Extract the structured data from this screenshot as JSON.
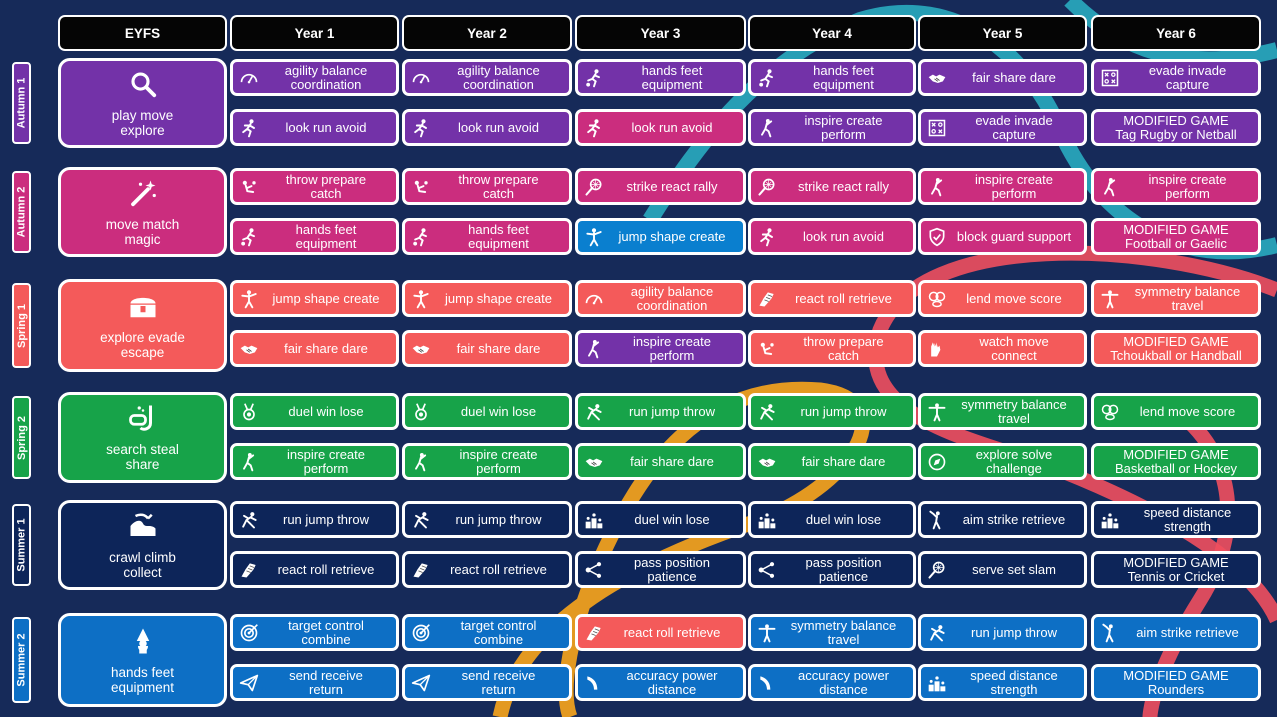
{
  "headers": [
    "EYFS",
    "Year 1",
    "Year 2",
    "Year 3",
    "Year 4",
    "Year 5",
    "Year 6"
  ],
  "colors": {
    "background": "#162a59",
    "autumn1": "#7332a8",
    "autumn2": "#cb2d7e",
    "spring1": "#f45a5a",
    "spring2": "#17a349",
    "summer1": "#0d2559",
    "summer2": "#0d6fc5",
    "year3_autumn2_highlight": "#0a7fcf",
    "swirl_teal": "#2ab3c6",
    "swirl_red": "#ef4f5e",
    "swirl_orange": "#f9a51b"
  },
  "terms": [
    {
      "name": "Autumn 1",
      "color": "#7332a8",
      "eyfs": {
        "label": "play move\nexplore",
        "icon": "magnifier-icon"
      },
      "rows": [
        [
          {
            "label": "agility balance\ncoordination",
            "icon": "speedometer-icon"
          },
          {
            "label": "agility balance\ncoordination",
            "icon": "speedometer-icon"
          },
          {
            "label": "hands feet\nequipment",
            "icon": "runner-ball-icon"
          },
          {
            "label": "hands feet\nequipment",
            "icon": "runner-ball-icon"
          },
          {
            "label": "fair share dare",
            "icon": "handshake-icon"
          },
          {
            "label": "evade invade\ncapture",
            "icon": "tactics-board-icon"
          }
        ],
        [
          {
            "label": "look run avoid",
            "icon": "runner-icon"
          },
          {
            "label": "look run avoid",
            "icon": "runner-icon"
          },
          {
            "label": "look run avoid",
            "icon": "runner-icon",
            "color": "#cb2d7e"
          },
          {
            "label": "inspire create\nperform",
            "icon": "dancer-icon"
          },
          {
            "label": "evade invade\ncapture",
            "icon": "tactics-board-icon"
          },
          {
            "label": "MODIFIED GAME\nTag Rugby or Netball",
            "modified": true
          }
        ]
      ]
    },
    {
      "name": "Autumn 2",
      "color": "#cb2d7e",
      "eyfs": {
        "label": "move match\nmagic",
        "icon": "magic-wand-icon"
      },
      "rows": [
        [
          {
            "label": "throw prepare\ncatch",
            "icon": "thrower-icon"
          },
          {
            "label": "throw prepare\ncatch",
            "icon": "thrower-icon"
          },
          {
            "label": "strike react rally",
            "icon": "racket-icon"
          },
          {
            "label": "strike react rally",
            "icon": "racket-icon"
          },
          {
            "label": "inspire create\nperform",
            "icon": "dancer-icon"
          },
          {
            "label": "inspire create\nperform",
            "icon": "dancer-icon"
          }
        ],
        [
          {
            "label": "hands feet\nequipment",
            "icon": "runner-ball-icon"
          },
          {
            "label": "hands feet\nequipment",
            "icon": "runner-ball-icon"
          },
          {
            "label": "jump shape create",
            "icon": "jumper-icon",
            "color": "#0a7fcf"
          },
          {
            "label": "look run avoid",
            "icon": "runner-icon"
          },
          {
            "label": "block guard support",
            "icon": "shield-icon"
          },
          {
            "label": "MODIFIED GAME\nFootball or Gaelic",
            "modified": true
          }
        ]
      ]
    },
    {
      "name": "Spring 1",
      "color": "#f45a5a",
      "eyfs": {
        "label": "explore evade\nescape",
        "icon": "treasure-chest-icon"
      },
      "rows": [
        [
          {
            "label": "jump shape create",
            "icon": "jumper-icon"
          },
          {
            "label": "jump shape create",
            "icon": "jumper-icon"
          },
          {
            "label": "agility balance\ncoordination",
            "icon": "speedometer-icon"
          },
          {
            "label": "react roll retrieve",
            "icon": "shoe-icon"
          },
          {
            "label": "lend move score",
            "icon": "balls-icon"
          },
          {
            "label": "symmetry balance\ntravel",
            "icon": "gymnast-icon"
          }
        ],
        [
          {
            "label": "fair share dare",
            "icon": "handshake-icon"
          },
          {
            "label": "fair share dare",
            "icon": "handshake-icon"
          },
          {
            "label": "inspire create\nperform",
            "icon": "dancer-icon",
            "color": "#7332a8"
          },
          {
            "label": "throw prepare\ncatch",
            "icon": "thrower-icon"
          },
          {
            "label": "watch move\nconnect",
            "icon": "hands-icon"
          },
          {
            "label": "MODIFIED GAME\nTchoukball or Handball",
            "modified": true
          }
        ]
      ]
    },
    {
      "name": "Spring 2",
      "color": "#17a349",
      "eyfs": {
        "label": "search steal\nshare",
        "icon": "snorkel-icon"
      },
      "rows": [
        [
          {
            "label": "duel win lose",
            "icon": "medal-icon"
          },
          {
            "label": "duel win lose",
            "icon": "medal-icon"
          },
          {
            "label": "run jump throw",
            "icon": "sprinter-icon"
          },
          {
            "label": "run jump throw",
            "icon": "sprinter-icon"
          },
          {
            "label": "symmetry balance\ntravel",
            "icon": "gymnast-icon"
          },
          {
            "label": "lend move score",
            "icon": "balls-icon"
          }
        ],
        [
          {
            "label": "inspire create\nperform",
            "icon": "dancer-icon"
          },
          {
            "label": "inspire create\nperform",
            "icon": "dancer-icon"
          },
          {
            "label": "fair share dare",
            "icon": "handshake-icon"
          },
          {
            "label": "fair share dare",
            "icon": "handshake-icon"
          },
          {
            "label": "explore solve\nchallenge",
            "icon": "compass-icon"
          },
          {
            "label": "MODIFIED GAME\nBasketball or Hockey",
            "modified": true
          }
        ]
      ]
    },
    {
      "name": "Summer 1",
      "color": "#0d2559",
      "eyfs": {
        "label": "crawl climb\ncollect",
        "icon": "jungle-icon"
      },
      "rows": [
        [
          {
            "label": "run jump throw",
            "icon": "sprinter-icon"
          },
          {
            "label": "run jump throw",
            "icon": "sprinter-icon"
          },
          {
            "label": "duel win lose",
            "icon": "podium-icon"
          },
          {
            "label": "duel win lose",
            "icon": "podium-icon"
          },
          {
            "label": "aim strike retrieve",
            "icon": "batter-icon"
          },
          {
            "label": "speed distance\nstrength",
            "icon": "podium-icon"
          }
        ],
        [
          {
            "label": "react roll retrieve",
            "icon": "shoe-icon"
          },
          {
            "label": "react roll retrieve",
            "icon": "shoe-icon"
          },
          {
            "label": "pass position\npatience",
            "icon": "network-icon"
          },
          {
            "label": "pass position\npatience",
            "icon": "network-icon"
          },
          {
            "label": "serve set slam",
            "icon": "racket-icon"
          },
          {
            "label": "MODIFIED GAME\nTennis or Cricket",
            "modified": true
          }
        ]
      ]
    },
    {
      "name": "Summer 2",
      "color": "#0d6fc5",
      "eyfs": {
        "label": "hands feet\nequipment",
        "icon": "gnome-icon"
      },
      "rows": [
        [
          {
            "label": "target control\ncombine",
            "icon": "target-icon"
          },
          {
            "label": "target control\ncombine",
            "icon": "target-icon"
          },
          {
            "label": "react roll retrieve",
            "icon": "shoe-icon",
            "color": "#f45a5a"
          },
          {
            "label": "symmetry balance\ntravel",
            "icon": "gymnast-icon"
          },
          {
            "label": "run jump throw",
            "icon": "sprinter-icon"
          },
          {
            "label": "aim strike retrieve",
            "icon": "batter-icon"
          }
        ],
        [
          {
            "label": "send receive\nreturn",
            "icon": "paper-plane-icon"
          },
          {
            "label": "send receive\nreturn",
            "icon": "paper-plane-icon"
          },
          {
            "label": "accuracy power\ndistance",
            "icon": "boomerang-icon"
          },
          {
            "label": "accuracy power\ndistance",
            "icon": "boomerang-icon"
          },
          {
            "label": "speed distance\nstrength",
            "icon": "podium-icon"
          },
          {
            "label": "MODIFIED GAME\nRounders",
            "modified": true
          }
        ]
      ]
    }
  ]
}
